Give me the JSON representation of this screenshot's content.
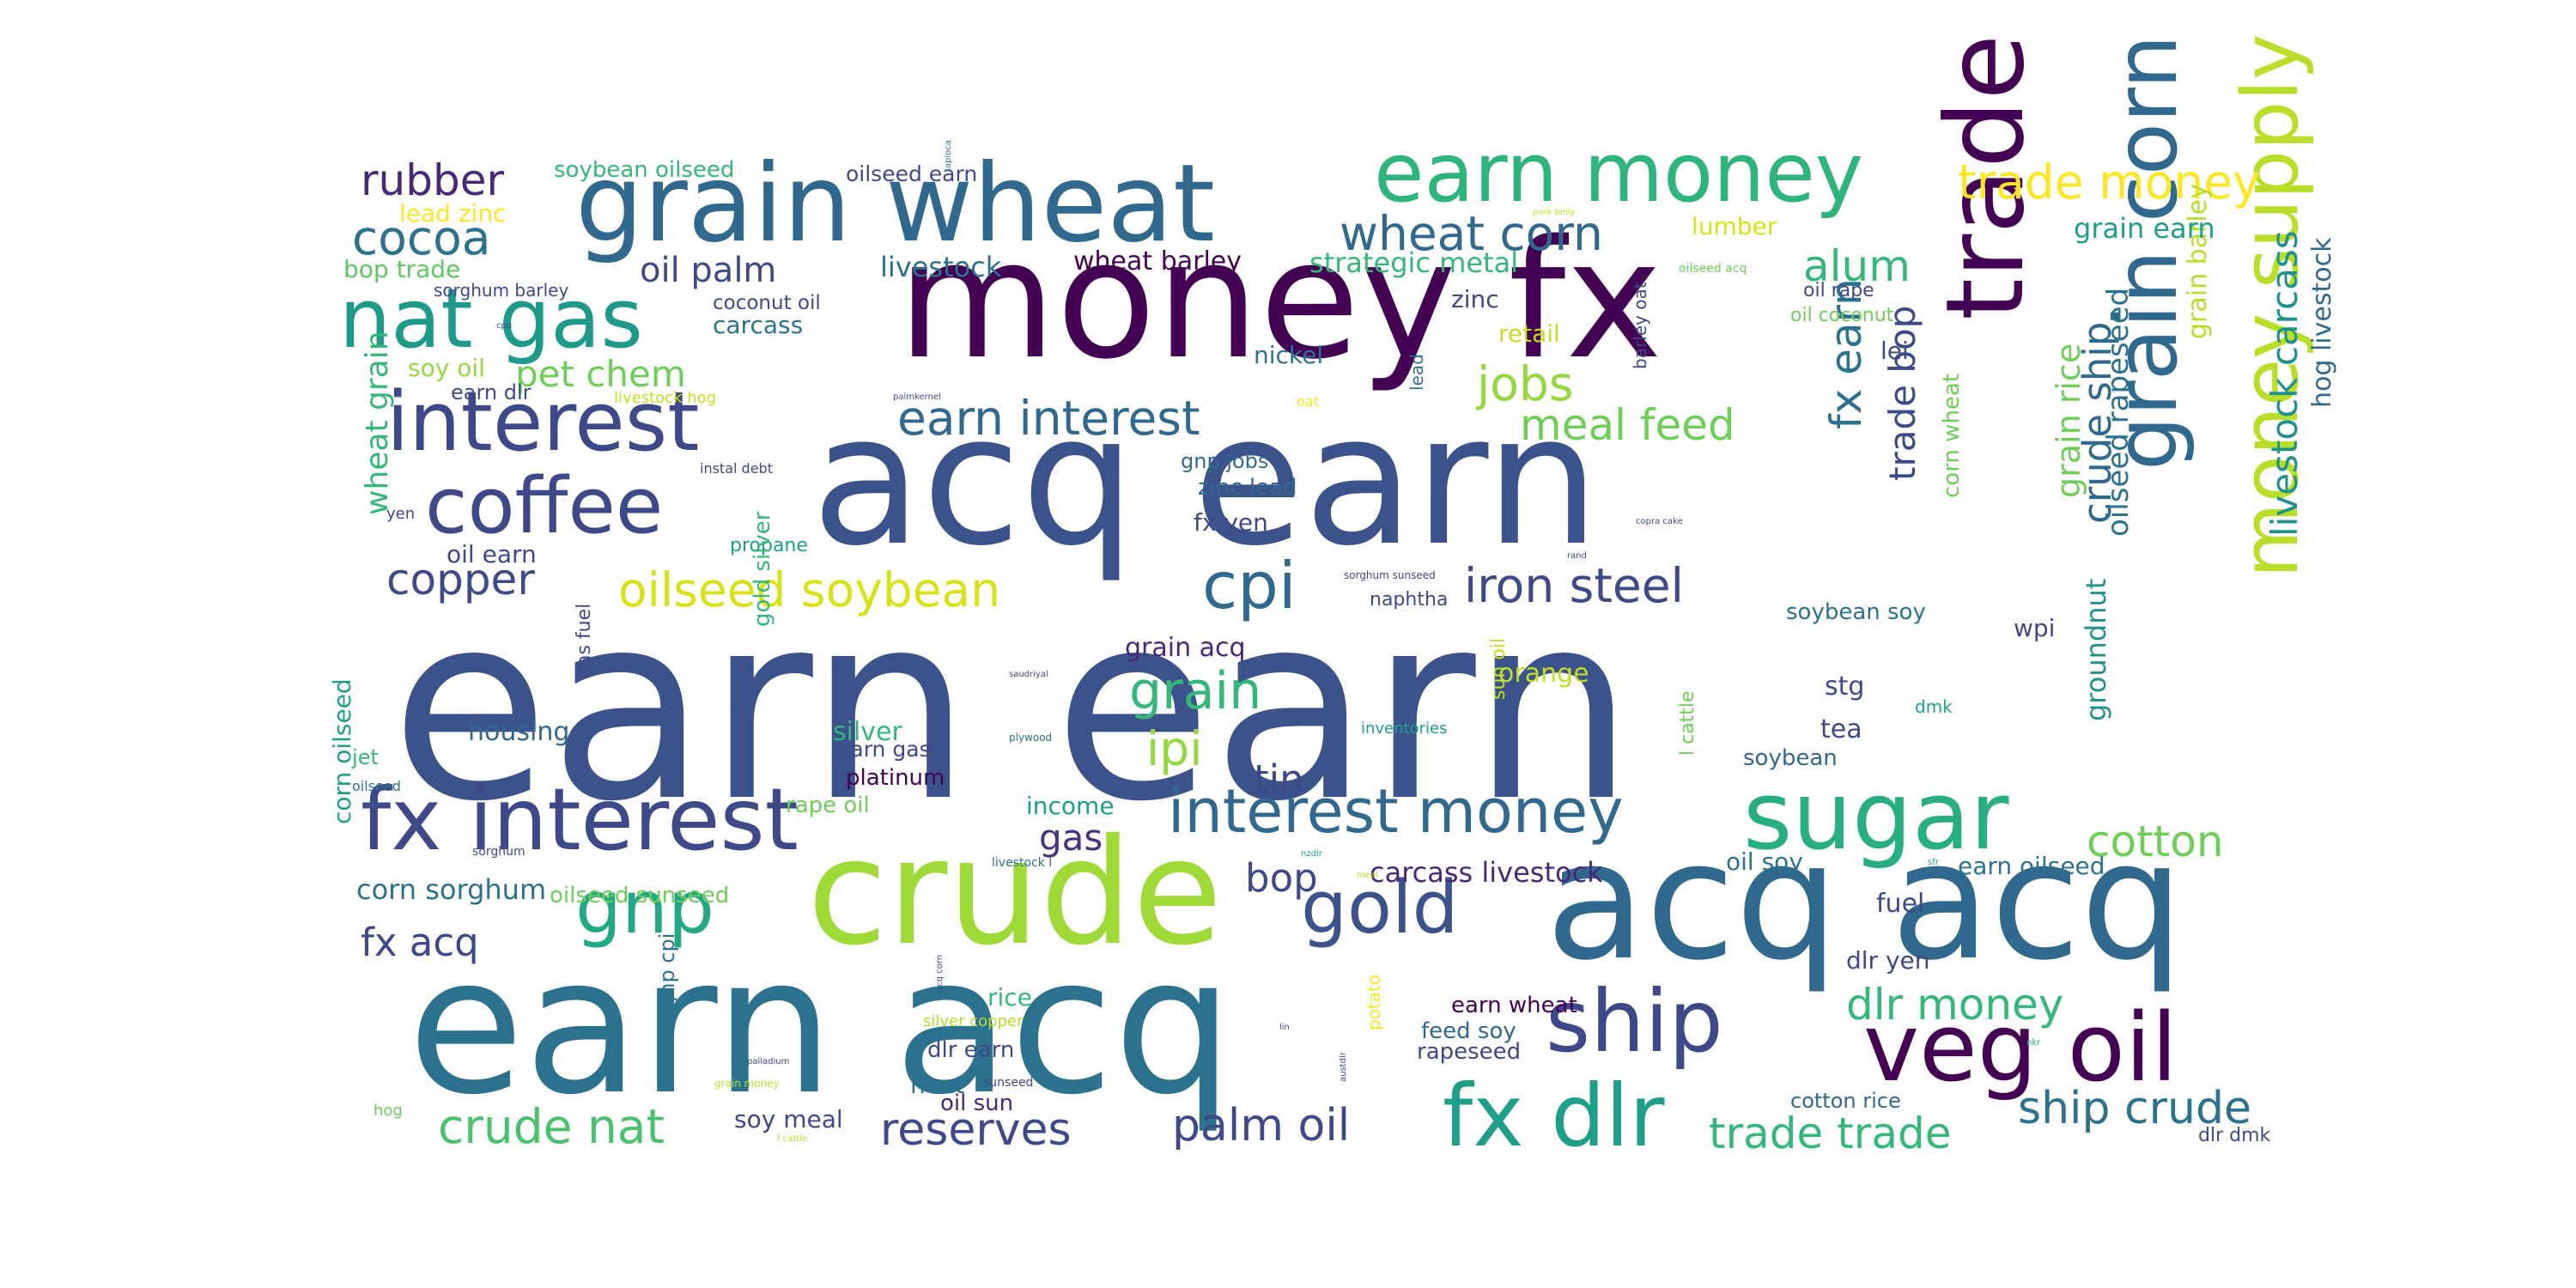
{
  "colors": {
    "background": "#ffffff",
    "palette": [
      "#440154",
      "#46327e",
      "#365c8d",
      "#277f8e",
      "#1fa187",
      "#4ac16d",
      "#a0da39",
      "#fde725"
    ]
  },
  "words": [
    {
      "text": "earn earn",
      "color": "#3b528b"
    },
    {
      "text": "acq earn",
      "color": "#3b528b"
    },
    {
      "text": "money fx",
      "color": "#440154"
    },
    {
      "text": "earn acq",
      "color": "#2c728e"
    },
    {
      "text": "acq acq",
      "color": "#31688e"
    },
    {
      "text": "crude",
      "color": "#a0da39"
    },
    {
      "text": "grain wheat",
      "color": "#31688e"
    },
    {
      "text": "trade",
      "color": "#440154"
    },
    {
      "text": "interest",
      "color": "#3e4989"
    },
    {
      "text": "fx interest",
      "color": "#3e4989"
    },
    {
      "text": "nat gas",
      "color": "#1f9a8a"
    },
    {
      "text": "earn money",
      "color": "#2fb47c"
    },
    {
      "text": "grain corn",
      "color": "#31688e"
    },
    {
      "text": "sugar",
      "color": "#29af7f"
    },
    {
      "text": "ship",
      "color": "#3e4989"
    },
    {
      "text": "veg oil",
      "color": "#440154"
    },
    {
      "text": "fx dlr",
      "color": "#1f9e89"
    },
    {
      "text": "money supply",
      "color": "#b8de29"
    },
    {
      "text": "coffee",
      "color": "#3e4989"
    },
    {
      "text": "gold",
      "color": "#3b528b"
    },
    {
      "text": "gnp",
      "color": "#22a884"
    },
    {
      "text": "cpi",
      "color": "#31688e"
    },
    {
      "text": "interest money",
      "color": "#31688e"
    },
    {
      "text": "trade money",
      "color": "#fde725"
    },
    {
      "text": "oilseed soybean",
      "color": "#d8e219"
    },
    {
      "text": "iron steel",
      "color": "#3e4989"
    },
    {
      "text": "earn interest",
      "color": "#31688e"
    },
    {
      "text": "wheat corn",
      "color": "#31688e"
    },
    {
      "text": "cocoa",
      "color": "#2c728e"
    },
    {
      "text": "rubber",
      "color": "#482878"
    },
    {
      "text": "copper",
      "color": "#3e4989"
    },
    {
      "text": "grain",
      "color": "#35b779"
    },
    {
      "text": "ipi",
      "color": "#95d840"
    },
    {
      "text": "ship crude",
      "color": "#2c728e"
    },
    {
      "text": "crude nat",
      "color": "#4ac16d"
    },
    {
      "text": "reserves",
      "color": "#3e4989"
    },
    {
      "text": "palm oil",
      "color": "#3e4989"
    },
    {
      "text": "trade trade",
      "color": "#35b779"
    },
    {
      "text": "dlr money",
      "color": "#35b779"
    },
    {
      "text": "cotton",
      "color": "#6ece58"
    },
    {
      "text": "livestock carcass",
      "color": "#21918c"
    },
    {
      "text": "crude ship",
      "color": "#31688e"
    },
    {
      "text": "fx earn",
      "color": "#2c728e"
    },
    {
      "text": "trade bop",
      "color": "#3e4989"
    },
    {
      "text": "alum",
      "color": "#35b779"
    },
    {
      "text": "jobs",
      "color": "#95d840"
    },
    {
      "text": "meal feed",
      "color": "#6ece58"
    },
    {
      "text": "pet chem",
      "color": "#6ece58"
    },
    {
      "text": "oil palm",
      "color": "#3e4989"
    },
    {
      "text": "tin",
      "color": "#3e4989"
    },
    {
      "text": "fx acq",
      "color": "#3e4989"
    },
    {
      "text": "corn sorghum",
      "color": "#2c728e"
    },
    {
      "text": "gas",
      "color": "#46327e"
    },
    {
      "text": "bop",
      "color": "#3e4989"
    },
    {
      "text": "carcass livestock",
      "color": "#482878"
    },
    {
      "text": "grain rice",
      "color": "#6ece58"
    },
    {
      "text": "oilseed rapeseed",
      "color": "#2c728e"
    },
    {
      "text": "hog livestock",
      "color": "#31688e"
    },
    {
      "text": "grain barley",
      "color": "#b5de2b"
    },
    {
      "text": "corn wheat",
      "color": "#6ece58"
    },
    {
      "text": "groundnut",
      "color": "#21918c"
    },
    {
      "text": "wheat grain",
      "color": "#35b779"
    },
    {
      "text": "grain earn",
      "color": "#1f9e89"
    },
    {
      "text": "wheat barley",
      "color": "#440154"
    },
    {
      "text": "strategic metal",
      "color": "#35b779"
    },
    {
      "text": "livestock",
      "color": "#2c728e"
    },
    {
      "text": "soybean oilseed",
      "color": "#35b779"
    },
    {
      "text": "oilseed earn",
      "color": "#3e4989"
    },
    {
      "text": "lead zinc",
      "color": "#fde725"
    },
    {
      "text": "bop trade",
      "color": "#5ec962"
    },
    {
      "text": "lumber",
      "color": "#d8e219"
    },
    {
      "text": "zinc",
      "color": "#3e4989"
    },
    {
      "text": "retail",
      "color": "#c2df23"
    },
    {
      "text": "nickel",
      "color": "#2c728e"
    },
    {
      "text": "lei",
      "color": "#3e4989"
    },
    {
      "text": "oil rape",
      "color": "#3e4989"
    },
    {
      "text": "oil coconut",
      "color": "#6ece58"
    },
    {
      "text": "coconut oil",
      "color": "#3e4989"
    },
    {
      "text": "carcass",
      "color": "#2c728e"
    },
    {
      "text": "soy oil",
      "color": "#95d840"
    },
    {
      "text": "earn dlr",
      "color": "#3e4989"
    },
    {
      "text": "sorghum barley",
      "color": "#3e4989"
    },
    {
      "text": "livestock hog",
      "color": "#c2df23"
    },
    {
      "text": "gnp jobs",
      "color": "#31688e"
    },
    {
      "text": "zinc lead",
      "color": "#31688e"
    },
    {
      "text": "fx yen",
      "color": "#3e4989"
    },
    {
      "text": "oil earn",
      "color": "#3e4989"
    },
    {
      "text": "propane",
      "color": "#1f9e89"
    },
    {
      "text": "grain acq",
      "color": "#482878"
    },
    {
      "text": "naphtha",
      "color": "#3e4989"
    },
    {
      "text": "soybean soy",
      "color": "#2c728e"
    },
    {
      "text": "wpi",
      "color": "#3e4989"
    },
    {
      "text": "orange",
      "color": "#c2df23"
    },
    {
      "text": "housing",
      "color": "#31688e"
    },
    {
      "text": "silver",
      "color": "#35b779"
    },
    {
      "text": "earn gas",
      "color": "#3e4989"
    },
    {
      "text": "platinum",
      "color": "#440154"
    },
    {
      "text": "rape oil",
      "color": "#6ece58"
    },
    {
      "text": "income",
      "color": "#1f9e89"
    },
    {
      "text": "stg",
      "color": "#3e4989"
    },
    {
      "text": "tea",
      "color": "#3e4989"
    },
    {
      "text": "soybean",
      "color": "#31688e"
    },
    {
      "text": "oil soy",
      "color": "#2c728e"
    },
    {
      "text": "earn oilseed",
      "color": "#2c728e"
    },
    {
      "text": "fuel",
      "color": "#3e4989"
    },
    {
      "text": "dlr yen",
      "color": "#3e4989"
    },
    {
      "text": "oilseed sunseed",
      "color": "#6ece58"
    },
    {
      "text": "rice",
      "color": "#35b779"
    },
    {
      "text": "dlr earn",
      "color": "#3e4989"
    },
    {
      "text": "heat",
      "color": "#2c728e"
    },
    {
      "text": "oil sun",
      "color": "#482878"
    },
    {
      "text": "soy meal",
      "color": "#3e4989"
    },
    {
      "text": "earn wheat",
      "color": "#440154"
    },
    {
      "text": "feed soy",
      "color": "#31688e"
    },
    {
      "text": "rapeseed",
      "color": "#3e4989"
    },
    {
      "text": "cotton rice",
      "color": "#31688e"
    },
    {
      "text": "dlr dmk",
      "color": "#3e4989"
    },
    {
      "text": "gold silver",
      "color": "#35b779"
    },
    {
      "text": "gas fuel",
      "color": "#3e4989"
    },
    {
      "text": "corn oilseed",
      "color": "#1f9e89"
    },
    {
      "text": "gnp cpi",
      "color": "#2c728e"
    },
    {
      "text": "jet",
      "color": "#35b779"
    },
    {
      "text": "sun oil",
      "color": "#c2df23"
    },
    {
      "text": "l cattle",
      "color": "#6ece58"
    },
    {
      "text": "barley oat",
      "color": "#3e4989"
    },
    {
      "text": "lead",
      "color": "#2c728e"
    },
    {
      "text": "potato",
      "color": "#fde725"
    },
    {
      "text": "silver copper",
      "color": "#b5de2b"
    },
    {
      "text": "inventories",
      "color": "#1f9e89"
    },
    {
      "text": "instal debt",
      "color": "#3e4989"
    },
    {
      "text": "dmk",
      "color": "#1f9e89"
    },
    {
      "text": "hog",
      "color": "#6ece58"
    },
    {
      "text": "yen",
      "color": "#3e4989"
    },
    {
      "text": "oilseed",
      "color": "#2c728e"
    },
    {
      "text": "sorghum",
      "color": "#3e4989"
    },
    {
      "text": "livestock l",
      "color": "#2c728e"
    },
    {
      "text": "plywood",
      "color": "#2c728e"
    },
    {
      "text": "oilseed acq",
      "color": "#6ece58"
    },
    {
      "text": "pork belly",
      "color": "#c2df23"
    },
    {
      "text": "tapioca",
      "color": "#2c728e"
    },
    {
      "text": "oat",
      "color": "#fde725"
    },
    {
      "text": "palmkernel",
      "color": "#3e4989"
    },
    {
      "text": "sorghum sunseed",
      "color": "#3e4989"
    },
    {
      "text": "copra cake",
      "color": "#3e4989"
    },
    {
      "text": "sunseed",
      "color": "#3e4989"
    },
    {
      "text": "grain money",
      "color": "#b5de2b"
    },
    {
      "text": "palladium",
      "color": "#3e4989"
    },
    {
      "text": "austdlr",
      "color": "#3e4989"
    },
    {
      "text": "acq corn",
      "color": "#3e4989"
    },
    {
      "text": "f cattle",
      "color": "#b5de2b"
    },
    {
      "text": "lin",
      "color": "#3e4989"
    },
    {
      "text": "nzdlr",
      "color": "#1f9e89"
    },
    {
      "text": "rand",
      "color": "#3e4989"
    },
    {
      "text": "saudriyal",
      "color": "#3e4989"
    },
    {
      "text": "meal",
      "color": "#b5de2b"
    },
    {
      "text": "nkr",
      "color": "#1f9e89"
    },
    {
      "text": "sfr",
      "color": "#1f9e89"
    },
    {
      "text": "cpu",
      "color": "#3e4989"
    }
  ]
}
